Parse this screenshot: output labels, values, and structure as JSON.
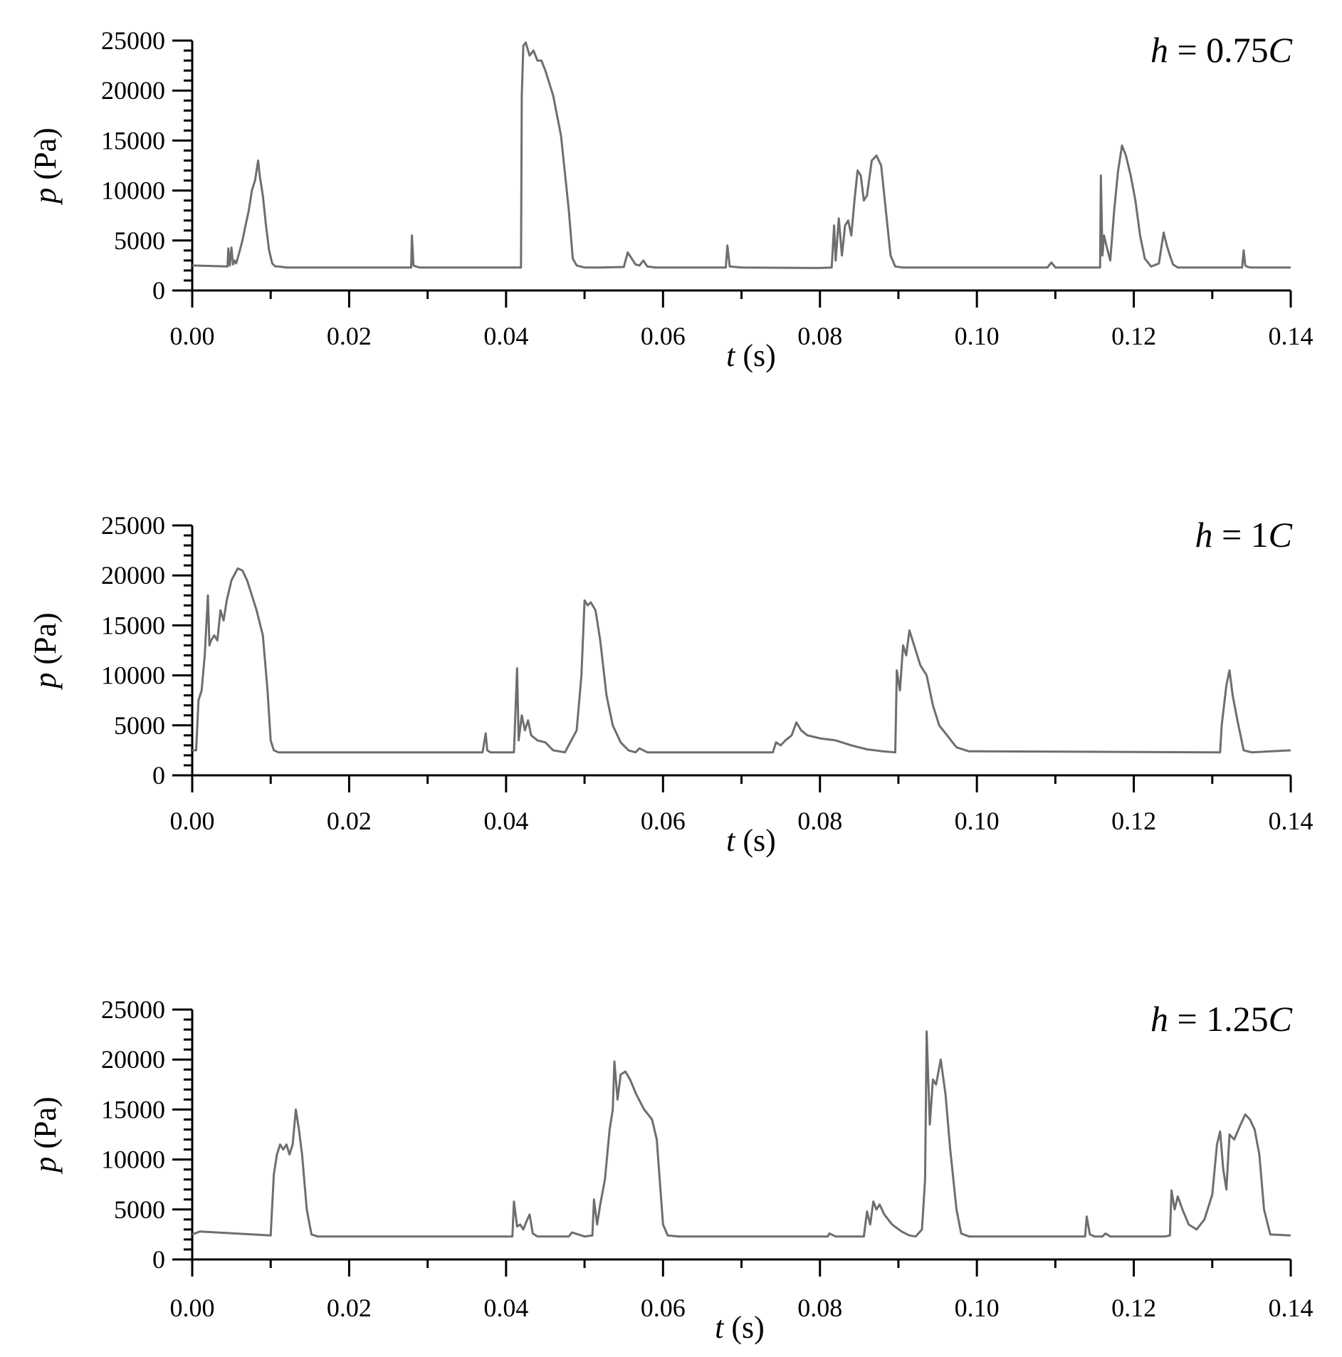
{
  "chart_data": [
    {
      "type": "line",
      "annotation": {
        "var": "h",
        "eq": " = ",
        "num": "0.75",
        "unit": "C"
      },
      "xlabel": {
        "var": "t",
        "unit": " (s)"
      },
      "ylabel": {
        "var": "p",
        "unit": " (Pa)"
      },
      "xlim": [
        0,
        0.14
      ],
      "ylim": [
        0,
        25000
      ],
      "xticks": [
        0,
        0.02,
        0.04,
        0.06,
        0.08,
        0.1,
        0.12,
        0.14
      ],
      "xtick_labels": [
        "0.00",
        "0.02",
        "0.04",
        "0.06",
        "0.08",
        "0.10",
        "0.12",
        "0.14"
      ],
      "yticks": [
        0,
        5000,
        10000,
        15000,
        20000,
        25000
      ],
      "ytick_labels": [
        "0",
        "5000",
        "10000",
        "15000",
        "20000",
        "25000"
      ],
      "line_color": "#6e6e6e",
      "series": [
        {
          "x": [
            0,
            0.0045,
            0.0046,
            0.0048,
            0.005,
            0.0052,
            0.0054,
            0.0056,
            0.006,
            0.0064,
            0.0068,
            0.0072,
            0.0076,
            0.008,
            0.0084,
            0.0086,
            0.009,
            0.0094,
            0.0098,
            0.0102,
            0.0106,
            0.011,
            0.012,
            0.0279,
            0.028,
            0.0282,
            0.0285,
            0.029,
            0.0419,
            0.042,
            0.0422,
            0.0425,
            0.043,
            0.0435,
            0.044,
            0.0445,
            0.045,
            0.046,
            0.047,
            0.048,
            0.0485,
            0.049,
            0.05,
            0.052,
            0.055,
            0.0555,
            0.056,
            0.0565,
            0.057,
            0.0575,
            0.058,
            0.059,
            0.068,
            0.0682,
            0.0685,
            0.07,
            0.08,
            0.0815,
            0.0818,
            0.082,
            0.0824,
            0.0828,
            0.0832,
            0.0836,
            0.084,
            0.0844,
            0.0848,
            0.0852,
            0.0856,
            0.086,
            0.0866,
            0.0872,
            0.0878,
            0.0884,
            0.089,
            0.0896,
            0.0905,
            0.092,
            0.109,
            0.1095,
            0.11,
            0.1157,
            0.1158,
            0.116,
            0.1162,
            0.1166,
            0.117,
            0.1175,
            0.118,
            0.1185,
            0.119,
            0.1196,
            0.1202,
            0.1208,
            0.1214,
            0.1222,
            0.1232,
            0.1238,
            0.1242,
            0.1246,
            0.125,
            0.1256,
            0.1265,
            0.1338,
            0.134,
            0.1342,
            0.1345,
            0.135,
            0.14
          ],
          "y": [
            2500,
            2400,
            4200,
            2500,
            4300,
            2600,
            3000,
            2700,
            3800,
            5000,
            6500,
            8000,
            10000,
            11000,
            13000,
            11500,
            9500,
            6500,
            4000,
            2700,
            2400,
            2400,
            2300,
            2300,
            5500,
            2500,
            2400,
            2300,
            2300,
            19500,
            24500,
            24800,
            23500,
            24000,
            23000,
            23000,
            22000,
            19500,
            15500,
            8000,
            3200,
            2500,
            2300,
            2300,
            2350,
            3800,
            3200,
            2600,
            2500,
            3000,
            2400,
            2300,
            2300,
            4500,
            2400,
            2300,
            2250,
            2300,
            6500,
            3000,
            7200,
            3500,
            6500,
            7000,
            5500,
            9000,
            12000,
            11500,
            9000,
            9500,
            13000,
            13500,
            12500,
            8000,
            3500,
            2400,
            2300,
            2300,
            2300,
            2800,
            2300,
            2300,
            11500,
            3500,
            5500,
            4200,
            3000,
            8000,
            12000,
            14500,
            13500,
            11500,
            9000,
            5500,
            3200,
            2400,
            2700,
            5800,
            4500,
            3500,
            2600,
            2300,
            2300,
            2300,
            4000,
            2500,
            2350,
            2300,
            2300
          ]
        }
      ]
    },
    {
      "type": "line",
      "annotation": {
        "var": "h",
        "eq": " = ",
        "num": "1",
        "unit": "C"
      },
      "xlabel": {
        "var": "t",
        "unit": " (s)"
      },
      "ylabel": {
        "var": "p",
        "unit": " (Pa)"
      },
      "xlim": [
        0,
        0.14
      ],
      "ylim": [
        0,
        25000
      ],
      "xticks": [
        0,
        0.02,
        0.04,
        0.06,
        0.08,
        0.1,
        0.12,
        0.14
      ],
      "xtick_labels": [
        "0.00",
        "0.02",
        "0.04",
        "0.06",
        "0.08",
        "0.10",
        "0.12",
        "0.14"
      ],
      "yticks": [
        0,
        5000,
        10000,
        15000,
        20000,
        25000
      ],
      "ytick_labels": [
        "0",
        "5000",
        "10000",
        "15000",
        "20000",
        "25000"
      ],
      "line_color": "#6e6e6e",
      "series": [
        {
          "x": [
            0,
            0.0005,
            0.0008,
            0.0012,
            0.0016,
            0.002,
            0.0022,
            0.0024,
            0.0028,
            0.0032,
            0.0036,
            0.004,
            0.0044,
            0.005,
            0.0058,
            0.0064,
            0.007,
            0.0076,
            0.0082,
            0.009,
            0.0096,
            0.01,
            0.0104,
            0.011,
            0.012,
            0.037,
            0.0374,
            0.0376,
            0.038,
            0.041,
            0.0414,
            0.0416,
            0.042,
            0.0424,
            0.0428,
            0.0432,
            0.044,
            0.045,
            0.046,
            0.0475,
            0.049,
            0.0496,
            0.05,
            0.0504,
            0.0508,
            0.0514,
            0.052,
            0.0528,
            0.0536,
            0.0546,
            0.0556,
            0.0565,
            0.057,
            0.058,
            0.074,
            0.0744,
            0.075,
            0.0756,
            0.0764,
            0.077,
            0.0776,
            0.0784,
            0.08,
            0.082,
            0.084,
            0.086,
            0.088,
            0.0896,
            0.0898,
            0.0902,
            0.0906,
            0.091,
            0.0914,
            0.0918,
            0.0922,
            0.0928,
            0.0936,
            0.0944,
            0.0952,
            0.0962,
            0.0974,
            0.099,
            0.1,
            0.131,
            0.1312,
            0.1318,
            0.1322,
            0.1326,
            0.1332,
            0.134,
            0.135,
            0.14
          ],
          "y": [
            2500,
            2500,
            7500,
            8500,
            12000,
            18000,
            13000,
            13500,
            14000,
            13500,
            16500,
            15500,
            17500,
            19500,
            20700,
            20500,
            19500,
            18000,
            16500,
            14000,
            8500,
            3500,
            2500,
            2300,
            2300,
            2300,
            4200,
            2500,
            2300,
            2300,
            10700,
            3500,
            6000,
            4500,
            5500,
            4000,
            3500,
            3300,
            2500,
            2300,
            4500,
            10000,
            17500,
            17000,
            17300,
            16500,
            13500,
            8000,
            5000,
            3300,
            2500,
            2300,
            2700,
            2300,
            2300,
            3300,
            3000,
            3500,
            4000,
            5300,
            4500,
            4000,
            3700,
            3500,
            3000,
            2600,
            2400,
            2300,
            10500,
            8500,
            13000,
            12000,
            14500,
            13500,
            12500,
            11000,
            10000,
            7000,
            5000,
            4000,
            2800,
            2400,
            2400,
            2300,
            5000,
            9000,
            10500,
            8000,
            5500,
            2500,
            2300,
            2500
          ]
        }
      ]
    },
    {
      "type": "line",
      "annotation": {
        "var": "h",
        "eq": " = ",
        "num": "1.25",
        "unit": "C"
      },
      "xlabel": {
        "var": "t",
        "unit": " (s)"
      },
      "ylabel": {
        "var": "p",
        "unit": " (Pa)"
      },
      "xlim": [
        0,
        0.14
      ],
      "ylim": [
        0,
        25000
      ],
      "xticks": [
        0,
        0.02,
        0.04,
        0.06,
        0.08,
        0.1,
        0.12,
        0.14
      ],
      "xtick_labels": [
        "0.00",
        "0.02",
        "0.04",
        "0.06",
        "0.08",
        "0.10",
        "0.12",
        "0.14"
      ],
      "yticks": [
        0,
        5000,
        10000,
        15000,
        20000,
        25000
      ],
      "ytick_labels": [
        "0",
        "5000",
        "10000",
        "15000",
        "20000",
        "25000"
      ],
      "line_color": "#6e6e6e",
      "series": [
        {
          "x": [
            0,
            0.001,
            0.01,
            0.0104,
            0.0108,
            0.0112,
            0.0116,
            0.012,
            0.0124,
            0.0128,
            0.0132,
            0.0136,
            0.014,
            0.0146,
            0.0152,
            0.016,
            0.017,
            0.0408,
            0.041,
            0.0414,
            0.0418,
            0.0422,
            0.0426,
            0.043,
            0.0434,
            0.044,
            0.048,
            0.0484,
            0.05,
            0.051,
            0.0512,
            0.0516,
            0.052,
            0.0526,
            0.0532,
            0.0536,
            0.0538,
            0.0542,
            0.0546,
            0.0552,
            0.0558,
            0.0566,
            0.0576,
            0.0586,
            0.0592,
            0.06,
            0.0606,
            0.062,
            0.08,
            0.081,
            0.0812,
            0.082,
            0.0856,
            0.086,
            0.0864,
            0.0868,
            0.0872,
            0.0876,
            0.0882,
            0.0892,
            0.0904,
            0.0914,
            0.0922,
            0.093,
            0.0934,
            0.0936,
            0.094,
            0.0944,
            0.0948,
            0.0954,
            0.096,
            0.0966,
            0.0974,
            0.098,
            0.099,
            0.1,
            0.1138,
            0.114,
            0.1144,
            0.115,
            0.116,
            0.1164,
            0.117,
            0.124,
            0.1246,
            0.1248,
            0.1252,
            0.1256,
            0.1262,
            0.127,
            0.128,
            0.129,
            0.13,
            0.1306,
            0.131,
            0.1314,
            0.1318,
            0.1322,
            0.1328,
            0.1336,
            0.1342,
            0.1348,
            0.1354,
            0.136,
            0.1366,
            0.1374,
            0.14
          ],
          "y": [
            2500,
            2800,
            2400,
            8500,
            10500,
            11500,
            11000,
            11500,
            10500,
            11500,
            15000,
            13000,
            10500,
            5000,
            2500,
            2300,
            2300,
            2300,
            5800,
            3300,
            3500,
            3000,
            3800,
            4500,
            2600,
            2300,
            2300,
            2700,
            2300,
            2400,
            6000,
            3500,
            5500,
            8000,
            13000,
            15000,
            19800,
            16000,
            18500,
            18800,
            18000,
            16500,
            15000,
            14000,
            12000,
            3500,
            2400,
            2300,
            2300,
            2300,
            2600,
            2300,
            2300,
            4800,
            3500,
            5800,
            5000,
            5500,
            4500,
            3500,
            2800,
            2400,
            2300,
            3000,
            8000,
            22800,
            13500,
            18000,
            17500,
            20000,
            16500,
            11000,
            5000,
            2600,
            2300,
            2300,
            2300,
            4300,
            2500,
            2300,
            2300,
            2600,
            2300,
            2300,
            2400,
            6900,
            5000,
            6300,
            5000,
            3500,
            3000,
            4000,
            6500,
            11500,
            12800,
            9000,
            7000,
            12500,
            12000,
            13500,
            14500,
            14000,
            13000,
            10500,
            5000,
            2500,
            2400
          ]
        }
      ]
    }
  ]
}
